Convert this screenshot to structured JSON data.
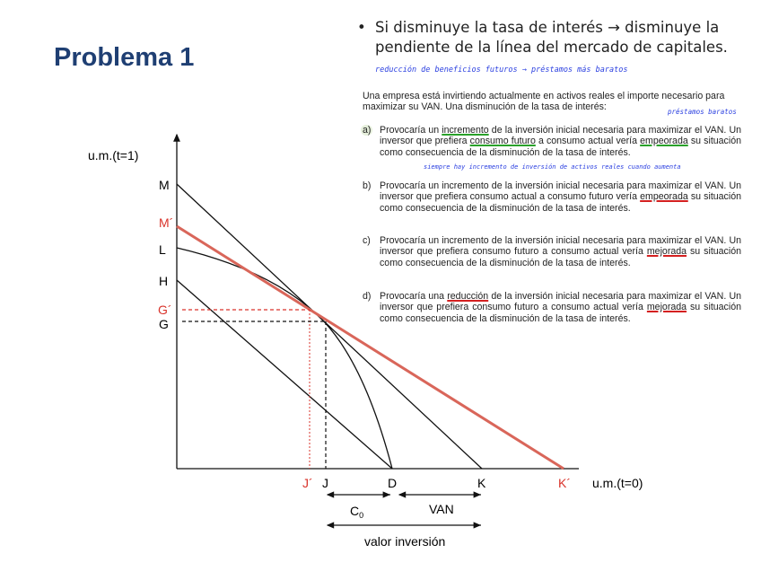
{
  "title": "Problema 1",
  "bullet": {
    "symbol": "•",
    "text": "Si disminuye la tasa de interés → disminuye la pendiente de la línea del mercado de capitales."
  },
  "handwritten": {
    "note1": "reducción de beneficios futuros → préstamos más baratos",
    "note2": "préstamos baratos",
    "note3": "siempre hay incremento de inversión de activos reales cuando aumenta"
  },
  "question": "Una empresa está invirtiendo actualmente en activos reales el importe necesario para maximizar su VAN. Una disminución de la tasa de interés:",
  "options": [
    {
      "label": "a)",
      "pre": "Provocaría un ",
      "u1": "incremento",
      "mid1": " de la inversión inicial necesaria para maximizar el VAN. Un inversor que prefiera ",
      "u2": "consumo futuro",
      "mid2": " a consumo actual vería ",
      "u3": "empeorada",
      "post": " su situación como consecuencia de la disminución de la tasa de interés."
    },
    {
      "label": "b)",
      "pre": "Provocaría un incremento de la inversión inicial necesaria para maximizar el VAN. Un inversor que prefiera consumo actual a consumo futuro vería ",
      "u1": "empeorada",
      "post": " su situación como consecuencia de la disminución de la tasa de interés."
    },
    {
      "label": "c)",
      "pre": "Provocaría un incremento de la inversión inicial necesaria para maximizar el VAN. Un inversor que prefiera consumo futuro a consumo actual vería ",
      "u1": "mejorada",
      "post": " su situación como consecuencia de la disminución de la tasa de interés."
    },
    {
      "label": "d)",
      "pre": "Provocaría una ",
      "u1": "reducción",
      "mid1": " de la inversión inicial necesaria para maximizar el VAN. Un inversor que prefiera consumo futuro a consumo actual vería ",
      "u2": "mejorada",
      "post": " su situación como consecuencia de la disminución de la tasa de interés."
    }
  ],
  "diagram": {
    "y_axis_label": "u.m.(t=1)",
    "x_axis_label": "u.m.(t=0)",
    "y_labels": {
      "M": "M",
      "Mp": "M´",
      "L": "L",
      "H": "H",
      "Gp": "G´",
      "G": "G"
    },
    "x_labels": {
      "Jp": "J´",
      "J": "J",
      "D": "D",
      "K": "K",
      "Kp": "K´"
    },
    "c0": "C",
    "c0_sub": "0",
    "van": "VAN",
    "valor": "valor inversión",
    "colors": {
      "red": "#d9332b",
      "new_line": "#d9665a",
      "black": "#111111"
    }
  }
}
